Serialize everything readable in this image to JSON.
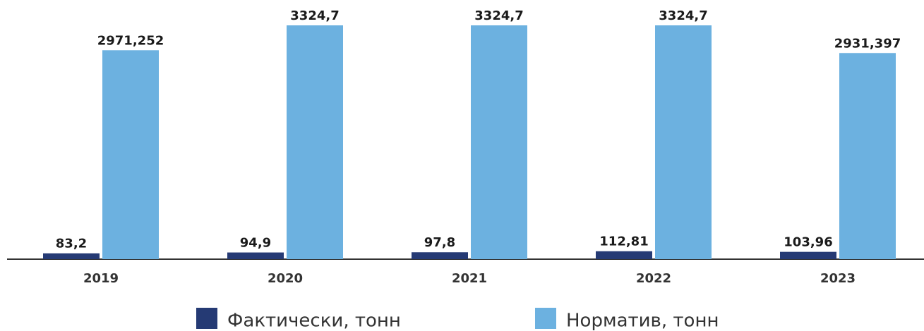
{
  "chart_data": {
    "type": "bar",
    "categories": [
      "2019",
      "2020",
      "2021",
      "2022",
      "2023"
    ],
    "series": [
      {
        "name": "Фактически, тонн",
        "color": "#253a74",
        "values": [
          83.2,
          94.9,
          97.8,
          112.81,
          103.96
        ],
        "value_labels": [
          "83,2",
          "94,9",
          "97,8",
          "112,81",
          "103,96"
        ]
      },
      {
        "name": "Норматив, тонн",
        "color": "#6cb1e0",
        "values": [
          2971.252,
          3324.7,
          3324.7,
          3324.7,
          2931.397
        ],
        "value_labels": [
          "2971,252",
          "3324,7",
          "3324,7",
          "3324,7",
          "2931,397"
        ]
      }
    ]
  }
}
